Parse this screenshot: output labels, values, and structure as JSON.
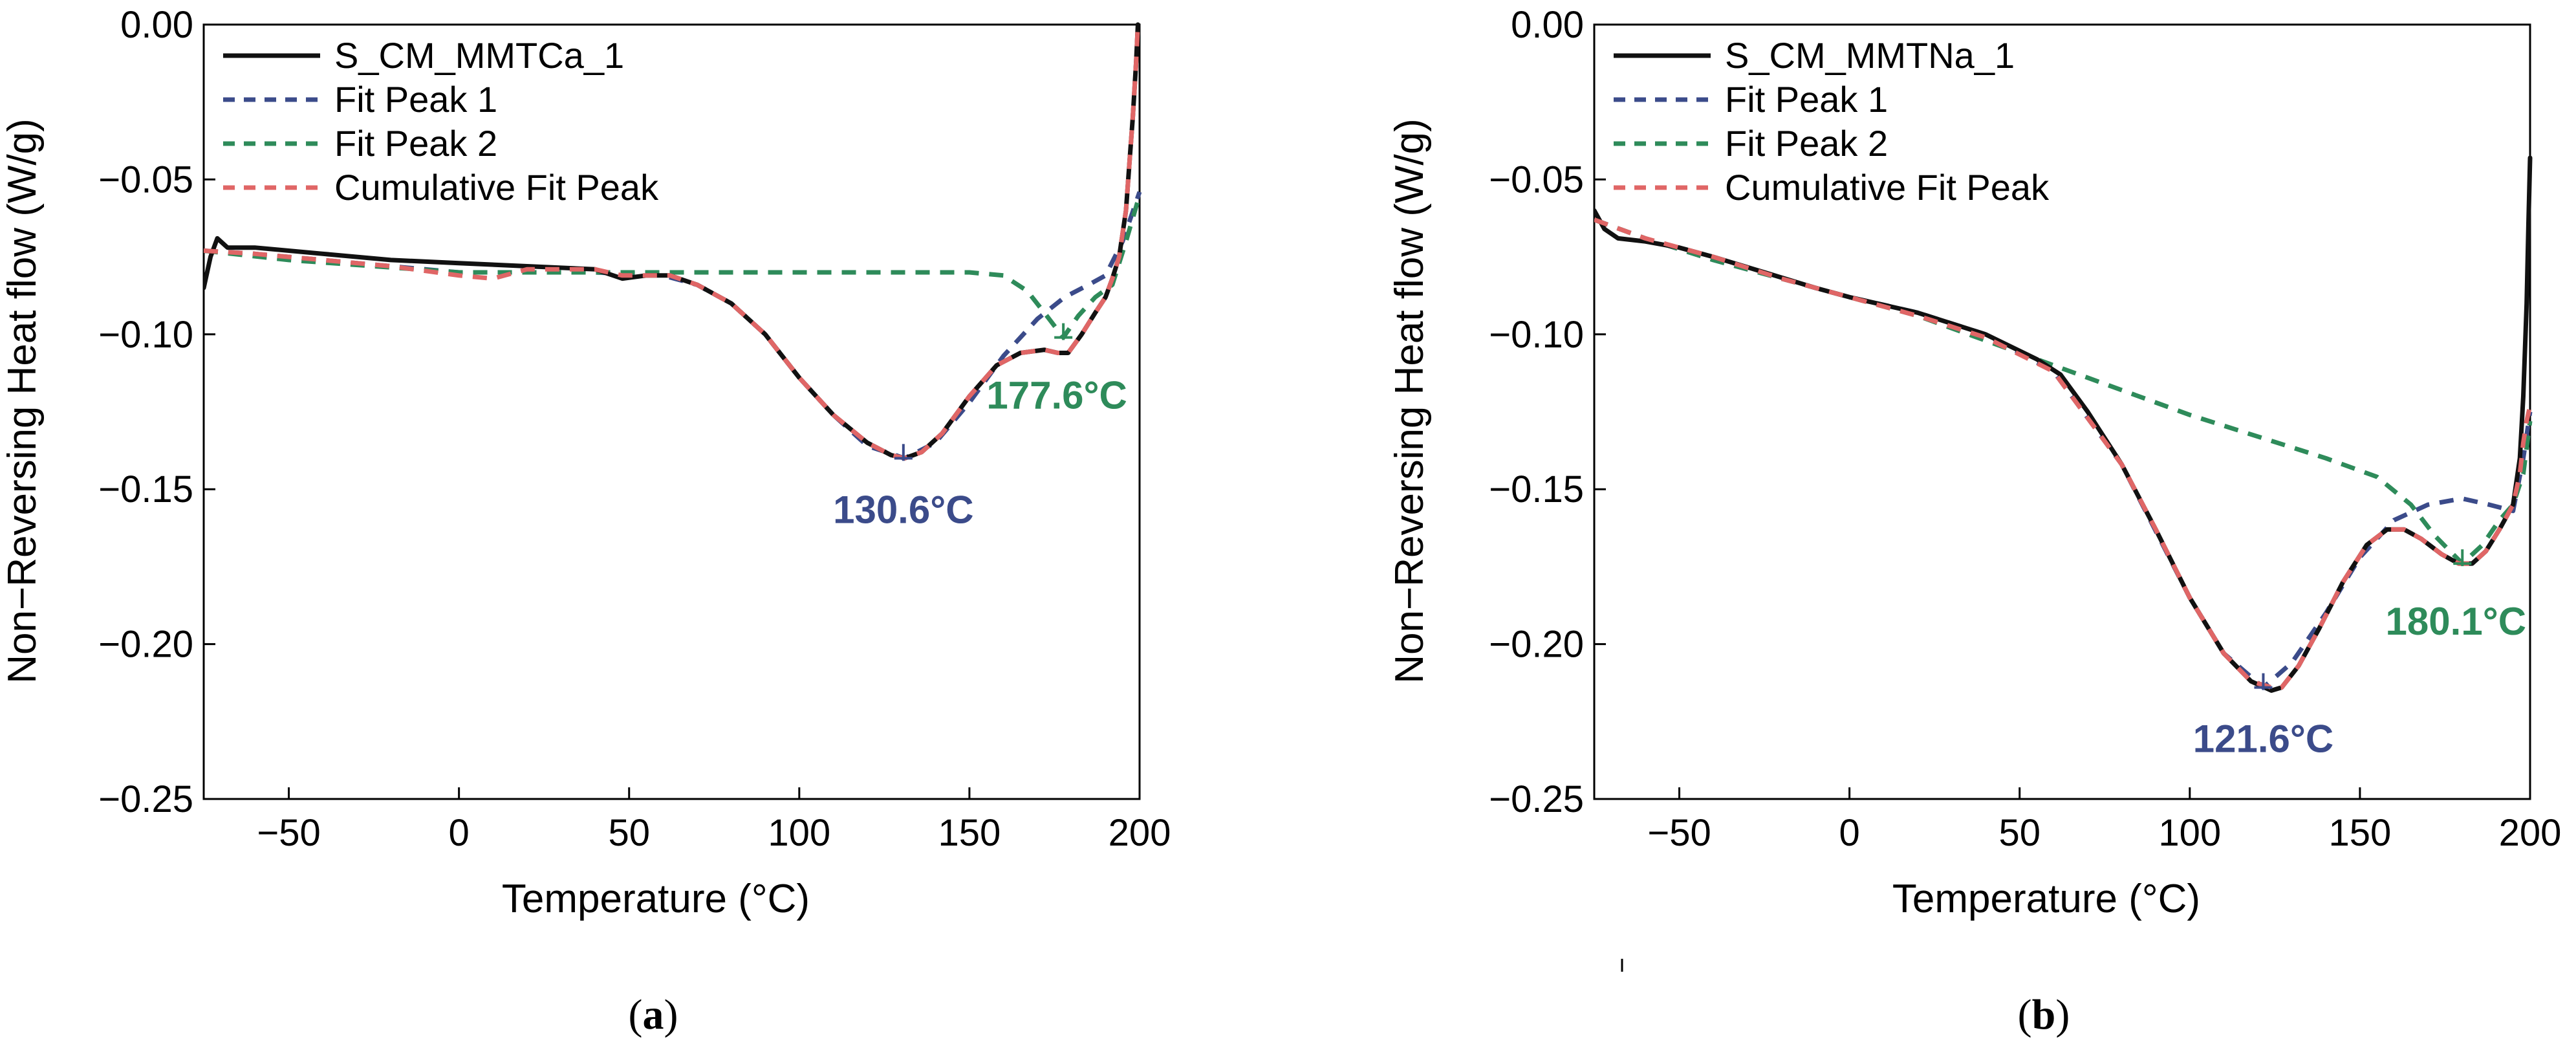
{
  "chart_data": [
    {
      "type": "line",
      "panel_label": "a",
      "xlabel": "Temperature (°C)",
      "ylabel": "Non−Reversing Heat flow (W/g)",
      "xlim": [
        -75,
        200
      ],
      "ylim": [
        -0.25,
        0.0
      ],
      "xticks": [
        -50,
        0,
        50,
        100,
        150,
        200
      ],
      "xtick_labels": [
        "−50",
        "0",
        "50",
        "100",
        "150",
        "200"
      ],
      "yticks": [
        0.0,
        -0.05,
        -0.1,
        -0.15,
        -0.2,
        -0.25
      ],
      "ytick_labels": [
        "0.00",
        "−0.05",
        "−0.10",
        "−0.15",
        "−0.20",
        "−0.25"
      ],
      "legend_position": "top-left",
      "series": [
        {
          "name": "S_CM_MMTCa_1",
          "color": "#111111",
          "style": "solid",
          "x": [
            -75,
            -73,
            -71,
            -68,
            -60,
            -40,
            -20,
            0,
            20,
            40,
            48,
            55,
            62,
            70,
            80,
            90,
            100,
            110,
            120,
            127,
            131,
            136,
            142,
            150,
            158,
            165,
            172,
            176,
            179,
            183,
            187,
            190,
            192,
            194,
            196,
            197,
            198,
            199,
            199.5
          ],
          "y": [
            -0.085,
            -0.075,
            -0.069,
            -0.072,
            -0.072,
            -0.074,
            -0.076,
            -0.077,
            -0.078,
            -0.079,
            -0.082,
            -0.081,
            -0.081,
            -0.084,
            -0.09,
            -0.1,
            -0.114,
            -0.126,
            -0.135,
            -0.139,
            -0.14,
            -0.138,
            -0.132,
            -0.12,
            -0.11,
            -0.106,
            -0.105,
            -0.106,
            -0.106,
            -0.1,
            -0.093,
            -0.088,
            -0.082,
            -0.075,
            -0.06,
            -0.045,
            -0.03,
            -0.012,
            0.0
          ]
        },
        {
          "name": "Fit Peak 1",
          "color": "#3b4b8a",
          "style": "dashed",
          "x": [
            -75,
            -60,
            -40,
            -20,
            0,
            20,
            40,
            60,
            70,
            80,
            90,
            100,
            110,
            120,
            131,
            140,
            150,
            160,
            170,
            178,
            185,
            190,
            195,
            200
          ],
          "y": [
            -0.073,
            -0.074,
            -0.076,
            -0.078,
            -0.08,
            -0.08,
            -0.08,
            -0.081,
            -0.084,
            -0.09,
            -0.1,
            -0.114,
            -0.126,
            -0.136,
            -0.14,
            -0.135,
            -0.122,
            -0.107,
            -0.095,
            -0.088,
            -0.084,
            -0.081,
            -0.07,
            -0.054
          ]
        },
        {
          "name": "Fit Peak 2",
          "color": "#2e8b5a",
          "style": "dashed",
          "x": [
            -75,
            -50,
            0,
            50,
            100,
            150,
            160,
            167,
            172,
            177.6,
            182,
            187,
            192,
            196,
            200
          ],
          "y": [
            -0.073,
            -0.076,
            -0.08,
            -0.08,
            -0.08,
            -0.08,
            -0.081,
            -0.086,
            -0.093,
            -0.101,
            -0.094,
            -0.088,
            -0.084,
            -0.07,
            -0.055
          ]
        },
        {
          "name": "Cumulative Fit Peak",
          "color": "#e06666",
          "style": "dashed",
          "x": [
            -75,
            -60,
            -40,
            -20,
            0,
            10,
            20,
            40,
            48,
            55,
            62,
            70,
            80,
            90,
            100,
            110,
            120,
            127,
            131,
            136,
            142,
            150,
            158,
            165,
            172,
            176,
            179,
            183,
            187,
            190,
            192,
            194,
            196,
            197,
            198,
            199,
            199.5
          ],
          "y": [
            -0.073,
            -0.074,
            -0.076,
            -0.078,
            -0.081,
            -0.082,
            -0.079,
            -0.079,
            -0.081,
            -0.081,
            -0.081,
            -0.084,
            -0.09,
            -0.1,
            -0.114,
            -0.126,
            -0.135,
            -0.139,
            -0.14,
            -0.138,
            -0.132,
            -0.12,
            -0.11,
            -0.106,
            -0.105,
            -0.106,
            -0.106,
            -0.1,
            -0.093,
            -0.088,
            -0.082,
            -0.075,
            -0.06,
            -0.045,
            -0.03,
            -0.012,
            0.0
          ]
        }
      ],
      "annotations": [
        {
          "text": "130.6°C",
          "x": 130.6,
          "y": -0.14,
          "color": "#3b4b8a"
        },
        {
          "text": "177.6°C",
          "x": 177.6,
          "y": -0.101,
          "color": "#2e8b5a"
        }
      ]
    },
    {
      "type": "line",
      "panel_label": "b",
      "xlabel": "Temperature (°C)",
      "ylabel": "Non−Reversing Heat flow (W/g)",
      "xlim": [
        -75,
        200
      ],
      "ylim": [
        -0.25,
        0.0
      ],
      "xticks": [
        -50,
        0,
        50,
        100,
        150,
        200
      ],
      "xtick_labels": [
        "−50",
        "0",
        "50",
        "100",
        "150",
        "200"
      ],
      "yticks": [
        0.0,
        -0.05,
        -0.1,
        -0.15,
        -0.2,
        -0.25
      ],
      "ytick_labels": [
        "0.00",
        "−0.05",
        "−0.10",
        "−0.15",
        "−0.20",
        "−0.25"
      ],
      "legend_position": "top-left",
      "series": [
        {
          "name": "S_CM_MMTNa_1",
          "color": "#111111",
          "style": "solid",
          "x": [
            -75,
            -72,
            -68,
            -60,
            -50,
            -40,
            -25,
            -10,
            0,
            20,
            40,
            55,
            62,
            70,
            80,
            90,
            100,
            110,
            118,
            124,
            127,
            132,
            138,
            145,
            152,
            158,
            163,
            168,
            174,
            179,
            183,
            187,
            191,
            195,
            197,
            198,
            199,
            199.5,
            200
          ],
          "y": [
            -0.06,
            -0.066,
            -0.069,
            -0.07,
            -0.072,
            -0.075,
            -0.08,
            -0.085,
            -0.088,
            -0.093,
            -0.1,
            -0.108,
            -0.113,
            -0.125,
            -0.142,
            -0.163,
            -0.185,
            -0.203,
            -0.212,
            -0.215,
            -0.214,
            -0.207,
            -0.195,
            -0.18,
            -0.168,
            -0.163,
            -0.163,
            -0.166,
            -0.171,
            -0.174,
            -0.174,
            -0.17,
            -0.163,
            -0.155,
            -0.14,
            -0.12,
            -0.09,
            -0.065,
            -0.043
          ]
        },
        {
          "name": "Fit Peak 1",
          "color": "#3b4b8a",
          "style": "dashed",
          "x": [
            -75,
            -60,
            -40,
            -20,
            0,
            20,
            40,
            60,
            80,
            100,
            110,
            121.6,
            130,
            140,
            150,
            160,
            170,
            180,
            188,
            195,
            198,
            200
          ],
          "y": [
            -0.063,
            -0.069,
            -0.076,
            -0.082,
            -0.088,
            -0.093,
            -0.1,
            -0.112,
            -0.142,
            -0.185,
            -0.203,
            -0.214,
            -0.206,
            -0.19,
            -0.172,
            -0.16,
            -0.155,
            -0.153,
            -0.155,
            -0.157,
            -0.14,
            -0.125
          ]
        },
        {
          "name": "Fit Peak 2",
          "color": "#2e8b5a",
          "style": "dashed",
          "x": [
            -75,
            -60,
            -40,
            -20,
            0,
            20,
            40,
            60,
            80,
            100,
            120,
            140,
            155,
            165,
            172,
            180.1,
            186,
            191,
            195,
            198,
            200
          ],
          "y": [
            -0.063,
            -0.069,
            -0.076,
            -0.082,
            -0.088,
            -0.094,
            -0.102,
            -0.11,
            -0.118,
            -0.126,
            -0.133,
            -0.14,
            -0.146,
            -0.155,
            -0.165,
            -0.174,
            -0.168,
            -0.16,
            -0.155,
            -0.145,
            -0.128
          ]
        },
        {
          "name": "Cumulative Fit Peak",
          "color": "#e06666",
          "style": "dashed",
          "x": [
            -75,
            -60,
            -40,
            -20,
            0,
            20,
            40,
            60,
            80,
            90,
            100,
            110,
            118,
            124,
            127,
            132,
            138,
            145,
            152,
            158,
            163,
            168,
            174,
            179,
            183,
            187,
            191,
            195,
            197,
            198,
            199,
            200
          ],
          "y": [
            -0.063,
            -0.069,
            -0.075,
            -0.082,
            -0.088,
            -0.094,
            -0.101,
            -0.112,
            -0.142,
            -0.163,
            -0.185,
            -0.203,
            -0.212,
            -0.214,
            -0.214,
            -0.207,
            -0.195,
            -0.18,
            -0.168,
            -0.163,
            -0.163,
            -0.166,
            -0.171,
            -0.174,
            -0.174,
            -0.17,
            -0.163,
            -0.155,
            -0.145,
            -0.135,
            -0.128,
            -0.123
          ]
        }
      ],
      "annotations": [
        {
          "text": "121.6°C",
          "x": 121.6,
          "y": -0.214,
          "color": "#3b4b8a"
        },
        {
          "text": "180.1°C",
          "x": 180.1,
          "y": -0.174,
          "color": "#2e8b5a"
        }
      ]
    }
  ]
}
